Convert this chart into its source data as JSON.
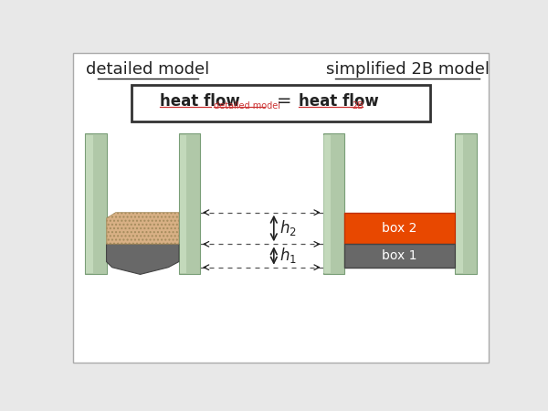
{
  "bg_color": "#e8e8e8",
  "panel_bg": "#ffffff",
  "title_left": "detailed model",
  "title_right": "simplified 2B model",
  "title_color": "#222222",
  "glass_color": "#b0c8a8",
  "glass_highlight": "#d4e8cc",
  "glass_edge_color": "#7a9e78",
  "sealant_color": "#d4a878",
  "spacer_color": "#686868",
  "box2_color": "#e84800",
  "box2_edge": "#c03000",
  "box1_color": "#686868",
  "box1_edge": "#444444",
  "box_text_color": "#ffffff",
  "arrow_color": "#222222",
  "dashed_color": "#555555",
  "formula_color": "#222222",
  "sub_color": "#cc3333",
  "underline_color": "#cc3333",
  "box_label1": "box 1",
  "box_label2": "box 2"
}
